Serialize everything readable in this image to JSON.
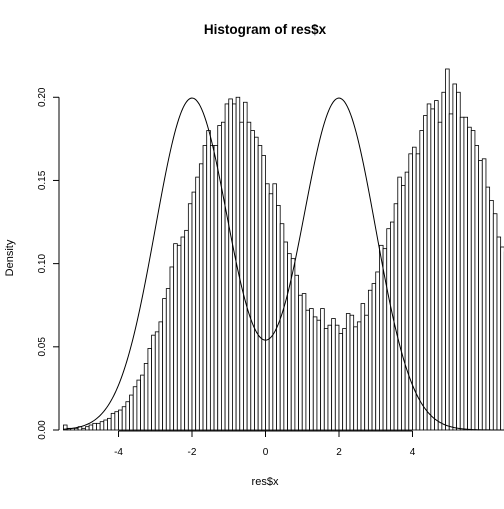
{
  "chart_data": {
    "type": "bar",
    "title": "Histogram of res$x",
    "xlabel": "res$x",
    "ylabel": "Density",
    "xlim": [
      -5.62,
      5.62
    ],
    "ylim": [
      0,
      0.223
    ],
    "x_ticks": [
      -4,
      -2,
      0,
      2,
      4
    ],
    "x_tick_labels": [
      "-4",
      "-2",
      "0",
      "2",
      "4"
    ],
    "y_ticks": [
      0,
      0.05,
      0.1,
      0.15,
      0.2
    ],
    "y_tick_labels": [
      "0.00",
      "0.05",
      "0.10",
      "0.15",
      "0.20"
    ],
    "bin_start": -5.5,
    "bin_width": 0.1,
    "values": [
      0.003,
      0.001,
      0.001,
      0.001,
      0.002,
      0.001,
      0.002,
      0.003,
      0.004,
      0.004,
      0.005,
      0.006,
      0.007,
      0.01,
      0.011,
      0.012,
      0.014,
      0.017,
      0.021,
      0.026,
      0.03,
      0.033,
      0.04,
      0.049,
      0.057,
      0.059,
      0.065,
      0.079,
      0.085,
      0.098,
      0.112,
      0.111,
      0.116,
      0.12,
      0.136,
      0.143,
      0.152,
      0.16,
      0.171,
      0.18,
      0.171,
      0.171,
      0.183,
      0.185,
      0.196,
      0.199,
      0.196,
      0.2,
      0.185,
      0.197,
      0.185,
      0.18,
      0.176,
      0.171,
      0.165,
      0.148,
      0.142,
      0.148,
      0.135,
      0.124,
      0.113,
      0.106,
      0.103,
      0.093,
      0.081,
      0.082,
      0.072,
      0.073,
      0.068,
      0.066,
      0.073,
      0.061,
      0.063,
      0.067,
      0.063,
      0.058,
      0.061,
      0.07,
      0.069,
      0.062,
      0.065,
      0.076,
      0.069,
      0.084,
      0.088,
      0.095,
      0.111,
      0.109,
      0.121,
      0.125,
      0.136,
      0.152,
      0.147,
      0.155,
      0.166,
      0.17,
      0.166,
      0.18,
      0.189,
      0.196,
      0.193,
      0.198,
      0.185,
      0.203,
      0.217,
      0.19,
      0.208,
      0.203,
      0.188,
      0.188,
      0.182,
      0.18,
      0.171,
      0.162,
      0.163,
      0.146,
      0.138,
      0.13,
      0.116,
      0.11,
      0.107,
      0.1,
      0.082,
      0.074,
      0.066,
      0.06,
      0.054,
      0.044,
      0.04,
      0.037,
      0.033,
      0.026,
      0.023,
      0.019,
      0.017,
      0.015,
      0.013,
      0.012,
      0.01,
      0.007,
      0.006,
      0.005,
      0.004,
      0.003,
      0.003,
      0.002,
      0.002,
      0.001,
      0.001,
      0.001,
      0.001,
      0.001,
      0.001,
      0.001,
      0.001,
      0.0,
      0.0
    ],
    "density_curve": {
      "mean1": -2,
      "mean2": 2,
      "sd": 1,
      "weight": 0.5
    }
  }
}
